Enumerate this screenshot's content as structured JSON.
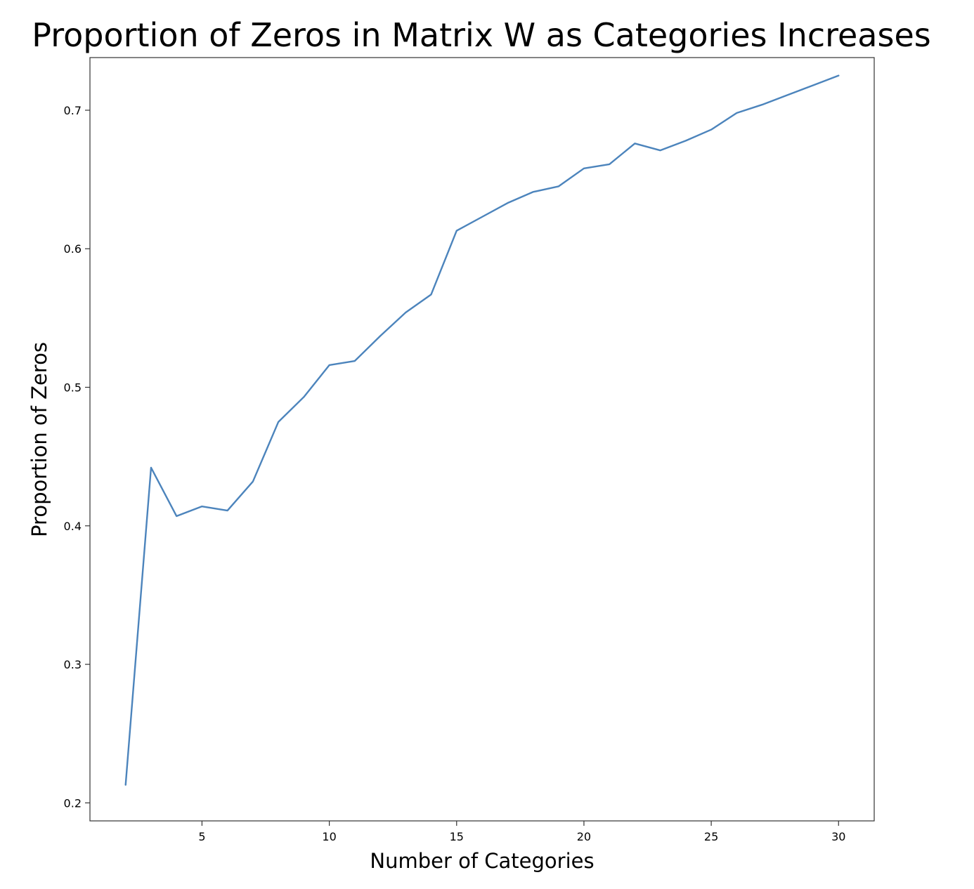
{
  "chart_data": {
    "type": "line",
    "title": "Proportion of Zeros in Matrix W as Categories Increases",
    "xlabel": "Number of Categories",
    "ylabel": "Proportion of Zeros",
    "xlim": [
      0.6,
      31.4
    ],
    "ylim": [
      0.187,
      0.738
    ],
    "xticks": [
      5,
      10,
      15,
      20,
      25,
      30
    ],
    "yticks": [
      0.2,
      0.3,
      0.4,
      0.5,
      0.6,
      0.7
    ],
    "xtick_labels": [
      "5",
      "10",
      "15",
      "20",
      "25",
      "30"
    ],
    "ytick_labels": [
      "0.2",
      "0.3",
      "0.4",
      "0.5",
      "0.6",
      "0.7"
    ],
    "grid": false,
    "line_color": "#4c84bc",
    "x": [
      2,
      3,
      4,
      5,
      6,
      7,
      8,
      9,
      10,
      11,
      12,
      13,
      14,
      15,
      16,
      17,
      18,
      19,
      20,
      21,
      22,
      23,
      24,
      25,
      26,
      27,
      28,
      29,
      30
    ],
    "series": [
      {
        "values": [
          0.213,
          0.442,
          0.407,
          0.414,
          0.411,
          0.432,
          0.475,
          0.493,
          0.516,
          0.519,
          0.537,
          0.554,
          0.567,
          0.613,
          0.623,
          0.633,
          0.641,
          0.645,
          0.658,
          0.661,
          0.676,
          0.671,
          0.678,
          0.686,
          0.698,
          0.704,
          0.711,
          0.718,
          0.725
        ]
      }
    ]
  }
}
